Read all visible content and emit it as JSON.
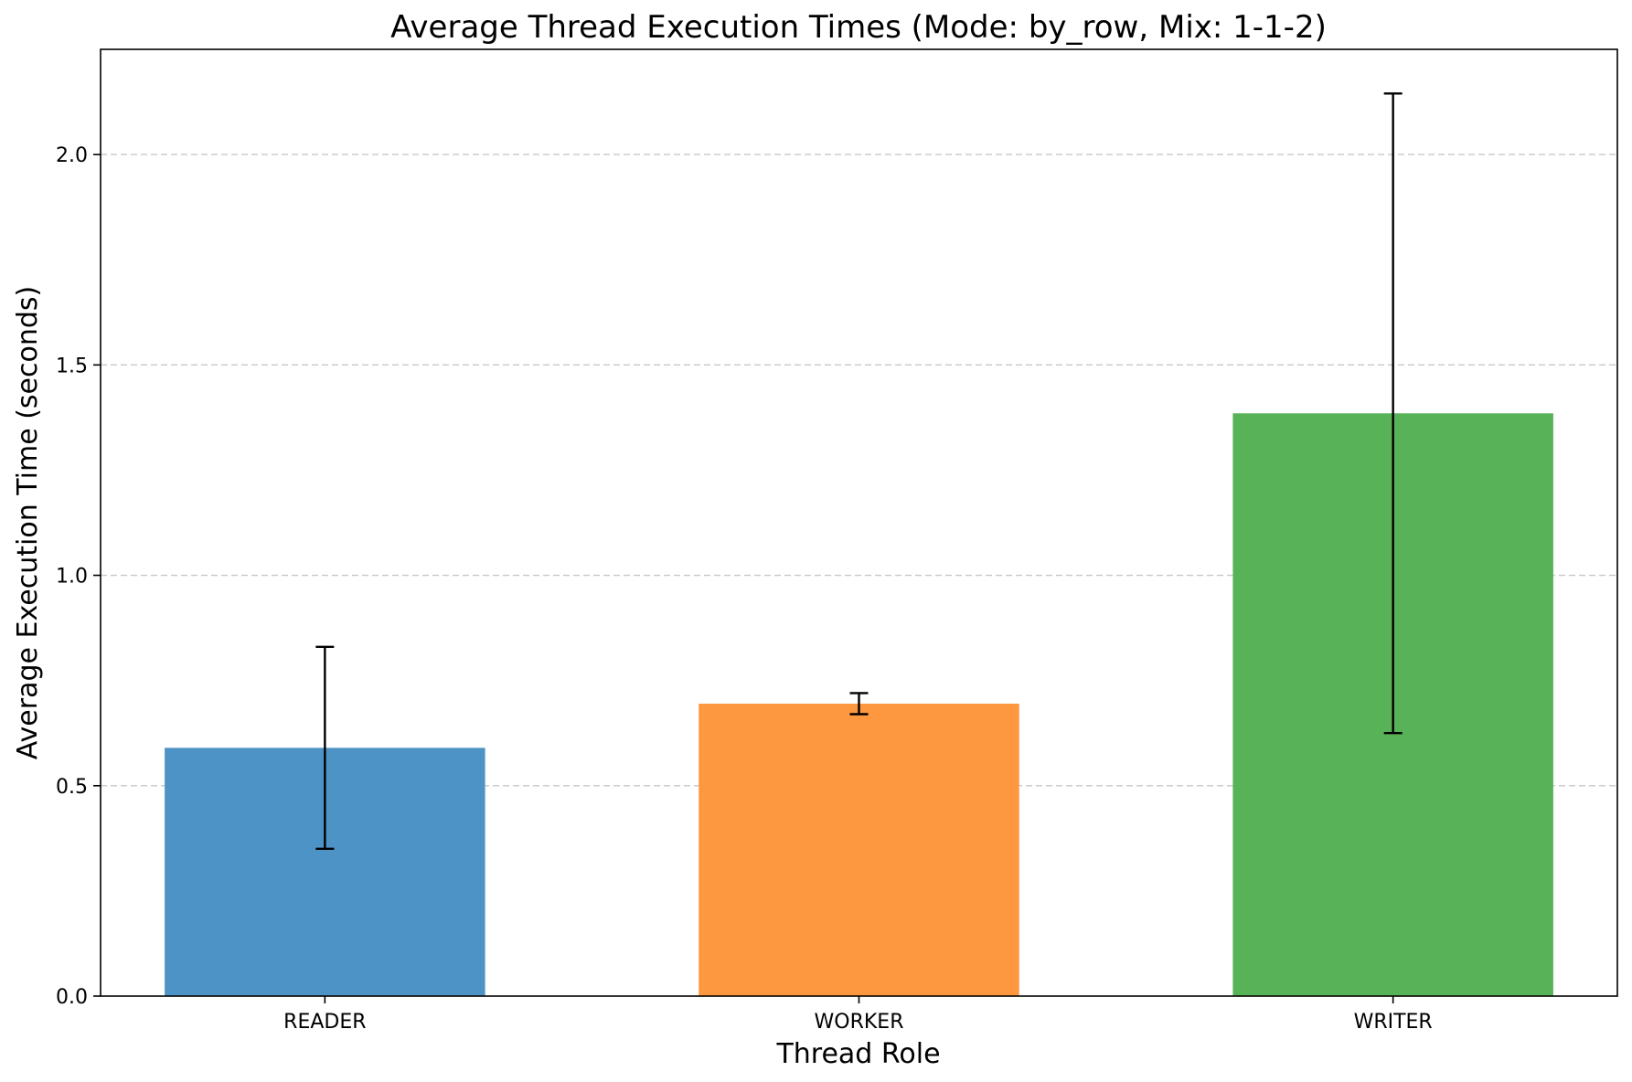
{
  "chart_data": {
    "type": "bar",
    "title": "Average Thread Execution Times (Mode: by_row, Mix: 1-1-2)",
    "xlabel": "Thread Role",
    "ylabel": "Average Execution Time (seconds)",
    "categories": [
      "READER",
      "WORKER",
      "WRITER"
    ],
    "values": [
      0.59,
      0.695,
      1.385
    ],
    "errors": [
      0.24,
      0.025,
      0.76
    ],
    "colors": [
      "#4e93c5",
      "#fe9840",
      "#58b358"
    ],
    "ylim": [
      0,
      2.25
    ],
    "yticks": [
      0.0,
      0.5,
      1.0,
      1.5,
      2.0
    ],
    "ytick_labels": [
      "0.0",
      "0.5",
      "1.0",
      "1.5",
      "2.0"
    ],
    "grid": "y-dashed",
    "legend": "none"
  }
}
